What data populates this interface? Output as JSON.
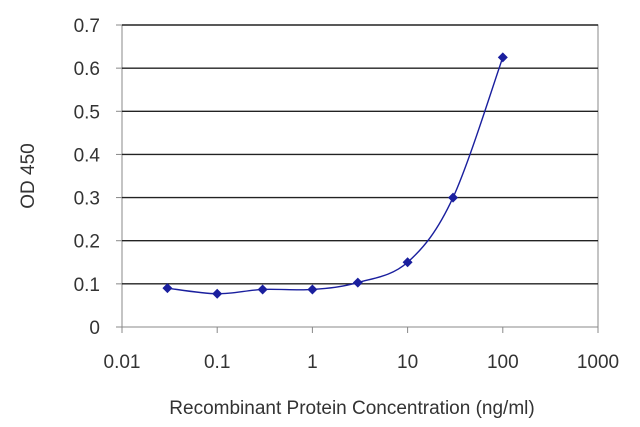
{
  "chart_data": {
    "type": "scatter",
    "title": "",
    "xlabel": "Recombinant Protein Concentration (ng/ml)",
    "ylabel": "OD 450",
    "xscale": "log",
    "xlim": [
      0.01,
      1000
    ],
    "ylim": [
      0,
      0.7
    ],
    "x_ticks": [
      "0.01",
      "0.1",
      "1",
      "10",
      "100",
      "1000"
    ],
    "x_tick_values": [
      0.01,
      0.1,
      1,
      10,
      100,
      1000
    ],
    "y_ticks": [
      "0",
      "0.1",
      "0.2",
      "0.3",
      "0.4",
      "0.5",
      "0.6",
      "0.7"
    ],
    "y_tick_values": [
      0,
      0.1,
      0.2,
      0.3,
      0.4,
      0.5,
      0.6,
      0.7
    ],
    "grid": "horizontal",
    "legend": "none",
    "colors": {
      "series": "#1a1f9e",
      "grid": "#222222",
      "axis": "#888888",
      "text": "#333333"
    },
    "series": [
      {
        "x": [
          0.03,
          0.1,
          0.3,
          1,
          3,
          10,
          30,
          100
        ],
        "values": [
          0.09,
          0.077,
          0.087,
          0.087,
          0.103,
          0.15,
          0.3,
          0.625
        ]
      }
    ]
  }
}
